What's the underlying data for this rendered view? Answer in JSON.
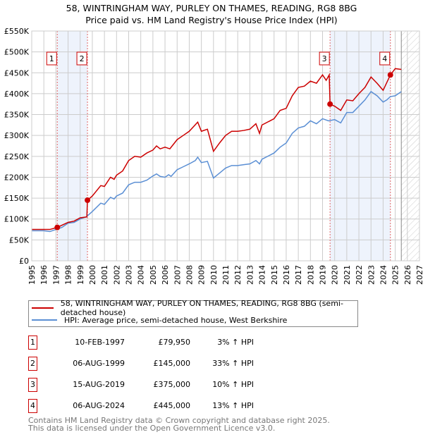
{
  "title_line1": "58, WINTRINGHAM WAY, PURLEY ON THAMES, READING, RG8 8BG",
  "title_line2": "Price paid vs. HM Land Registry's House Price Index (HPI)",
  "chart_data": {
    "type": "line",
    "xlim": [
      1995,
      2027
    ],
    "ylim": [
      0,
      550000
    ],
    "x_ticks": [
      "1995",
      "1996",
      "1997",
      "1998",
      "1999",
      "2000",
      "2001",
      "2002",
      "2003",
      "2004",
      "2005",
      "2006",
      "2007",
      "2008",
      "2009",
      "2010",
      "2011",
      "2012",
      "2013",
      "2014",
      "2015",
      "2016",
      "2017",
      "2018",
      "2019",
      "2020",
      "2021",
      "2022",
      "2023",
      "2024",
      "2025",
      "2026",
      "2027"
    ],
    "y_ticks": [
      {
        "v": 0,
        "label": "£0"
      },
      {
        "v": 50000,
        "label": "£50K"
      },
      {
        "v": 100000,
        "label": "£100K"
      },
      {
        "v": 150000,
        "label": "£150K"
      },
      {
        "v": 200000,
        "label": "£200K"
      },
      {
        "v": 250000,
        "label": "£250K"
      },
      {
        "v": 300000,
        "label": "£300K"
      },
      {
        "v": 350000,
        "label": "£350K"
      },
      {
        "v": 400000,
        "label": "£400K"
      },
      {
        "v": 450000,
        "label": "£450K"
      },
      {
        "v": 500000,
        "label": "£500K"
      },
      {
        "v": 550000,
        "label": "£550K"
      }
    ],
    "grid": true,
    "forecast_from": 2025.5,
    "shaded_ranges": [
      [
        1997.11,
        1999.6
      ],
      [
        2019.62,
        2024.6
      ]
    ],
    "series": [
      {
        "name": "58, WINTRINGHAM WAY, PURLEY ON THAMES, READING, RG8 8BG (semi-detached house)",
        "color": "#cc0000",
        "x": [
          1995,
          1996.5,
          1997.11,
          1998,
          1998.5,
          1999,
          1999.55,
          1999.6,
          2000,
          2000.7,
          2001,
          2001.5,
          2001.8,
          2002,
          2002.5,
          2003,
          2003.5,
          2004,
          2004.5,
          2005,
          2005.3,
          2005.6,
          2006,
          2006.4,
          2007,
          2007.5,
          2008,
          2008.7,
          2009,
          2009.5,
          2010,
          2010.5,
          2011,
          2011.5,
          2012,
          2012.5,
          2013,
          2013.5,
          2013.8,
          2014,
          2015,
          2015.5,
          2016,
          2016.5,
          2017,
          2017.5,
          2018,
          2018.5,
          2019,
          2019.3,
          2019.55,
          2019.62,
          2020,
          2020.5,
          2021,
          2021.5,
          2022,
          2022.5,
          2023,
          2023.5,
          2024,
          2024.6,
          2025,
          2025.5
        ],
        "y": [
          75000,
          75000,
          79950,
          92000,
          95000,
          103000,
          105000,
          145000,
          155000,
          180000,
          178000,
          200000,
          195000,
          205000,
          215000,
          240000,
          250000,
          248000,
          258000,
          265000,
          275000,
          268000,
          272000,
          268000,
          290000,
          300000,
          310000,
          332000,
          310000,
          315000,
          262000,
          282000,
          300000,
          310000,
          310000,
          312000,
          315000,
          328000,
          305000,
          325000,
          340000,
          360000,
          365000,
          395000,
          415000,
          418000,
          430000,
          425000,
          445000,
          432000,
          445000,
          375000,
          370000,
          360000,
          385000,
          383000,
          400000,
          415000,
          440000,
          425000,
          408000,
          445000,
          460000,
          458000
        ]
      },
      {
        "name": "HPI: Average price, semi-detached house, West Berkshire",
        "color": "#5b8fd4",
        "x": [
          1995,
          1996,
          1996.5,
          1997,
          1997.5,
          1998,
          1998.5,
          1999,
          1999.5,
          2000,
          2000.7,
          2001,
          2001.5,
          2001.8,
          2002,
          2002.5,
          2003,
          2003.5,
          2004,
          2004.5,
          2005,
          2005.3,
          2005.6,
          2006,
          2006.3,
          2006.5,
          2007,
          2007.5,
          2008,
          2008.5,
          2008.7,
          2009,
          2009.5,
          2010,
          2010.5,
          2011,
          2011.5,
          2012,
          2012.5,
          2013,
          2013.5,
          2013.8,
          2014,
          2015,
          2015.5,
          2016,
          2016.5,
          2017,
          2017.5,
          2018,
          2018.5,
          2019,
          2019.5,
          2020,
          2020.5,
          2021,
          2021.5,
          2022,
          2022.5,
          2023,
          2023.5,
          2024,
          2024.3,
          2024.6,
          2025,
          2025.5
        ],
        "y": [
          72000,
          72000,
          70000,
          75000,
          80000,
          90000,
          92000,
          100000,
          105000,
          118000,
          138000,
          135000,
          152000,
          148000,
          155000,
          162000,
          182000,
          188000,
          188000,
          193000,
          203000,
          208000,
          202000,
          200000,
          206000,
          202000,
          218000,
          225000,
          232000,
          240000,
          248000,
          235000,
          238000,
          198000,
          210000,
          222000,
          228000,
          228000,
          230000,
          232000,
          240000,
          232000,
          243000,
          258000,
          272000,
          282000,
          305000,
          318000,
          322000,
          335000,
          328000,
          340000,
          335000,
          338000,
          330000,
          355000,
          355000,
          370000,
          385000,
          405000,
          395000,
          380000,
          385000,
          393000,
          395000,
          405000
        ]
      }
    ],
    "annotations": [
      {
        "label": "1",
        "x": 1997.11,
        "y": 79950
      },
      {
        "label": "2",
        "x": 1999.6,
        "y": 145000
      },
      {
        "label": "3",
        "x": 2019.62,
        "y": 375000
      },
      {
        "label": "4",
        "x": 2024.6,
        "y": 445000
      }
    ]
  },
  "legend": {
    "items": [
      {
        "label": "58, WINTRINGHAM WAY, PURLEY ON THAMES, READING, RG8 8BG (semi-detached house)",
        "color": "#cc0000"
      },
      {
        "label": "HPI: Average price, semi-detached house, West Berkshire",
        "color": "#5b8fd4"
      }
    ]
  },
  "sales": [
    {
      "num": "1",
      "date": "10-FEB-1997",
      "price": "£79,950",
      "hpi": "3% ↑ HPI"
    },
    {
      "num": "2",
      "date": "06-AUG-1999",
      "price": "£145,000",
      "hpi": "33% ↑ HPI"
    },
    {
      "num": "3",
      "date": "15-AUG-2019",
      "price": "£375,000",
      "hpi": "10% ↑ HPI"
    },
    {
      "num": "4",
      "date": "06-AUG-2024",
      "price": "£445,000",
      "hpi": "13% ↑ HPI"
    }
  ],
  "footer": {
    "line1": "Contains HM Land Registry data © Crown copyright and database right 2025.",
    "line2": "This data is licensed under the Open Government Licence v3.0."
  }
}
